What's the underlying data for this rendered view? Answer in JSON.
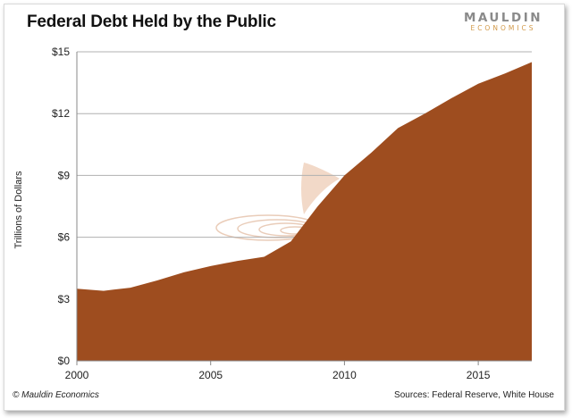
{
  "header": {
    "title": "Federal Debt Held by the Public"
  },
  "logo": {
    "main": "MAULDIN",
    "sub": "ECONOMICS"
  },
  "footer": {
    "copyright": "© Mauldin Economics",
    "sources": "Sources: Federal Reserve, White House"
  },
  "colors": {
    "area": "#9e4d1f",
    "grid": "#b0b0b0",
    "watermark": "#e6c4ad"
  },
  "chart_data": {
    "type": "area",
    "title": "Federal Debt Held by the Public",
    "xlabel": "",
    "ylabel": "Trillions of Dollars",
    "x": [
      2000,
      2001,
      2002,
      2003,
      2004,
      2005,
      2006,
      2007,
      2008,
      2009,
      2010,
      2011,
      2012,
      2013,
      2014,
      2015,
      2016,
      2017
    ],
    "values": [
      3.5,
      3.4,
      3.55,
      3.9,
      4.3,
      4.6,
      4.85,
      5.05,
      5.8,
      7.5,
      9.0,
      10.1,
      11.3,
      12.0,
      12.75,
      13.45,
      13.95,
      14.5
    ],
    "xlim": [
      2000,
      2017
    ],
    "ylim": [
      0,
      15
    ],
    "x_ticks": [
      2000,
      2005,
      2010,
      2015
    ],
    "x_tick_labels": [
      "2000",
      "2005",
      "2010",
      "2015"
    ],
    "y_ticks": [
      0,
      3,
      6,
      9,
      12,
      15
    ],
    "y_tick_labels": [
      "$0",
      "$3",
      "$6",
      "$9",
      "$12",
      "$15"
    ],
    "grid": true,
    "legend": "none"
  }
}
